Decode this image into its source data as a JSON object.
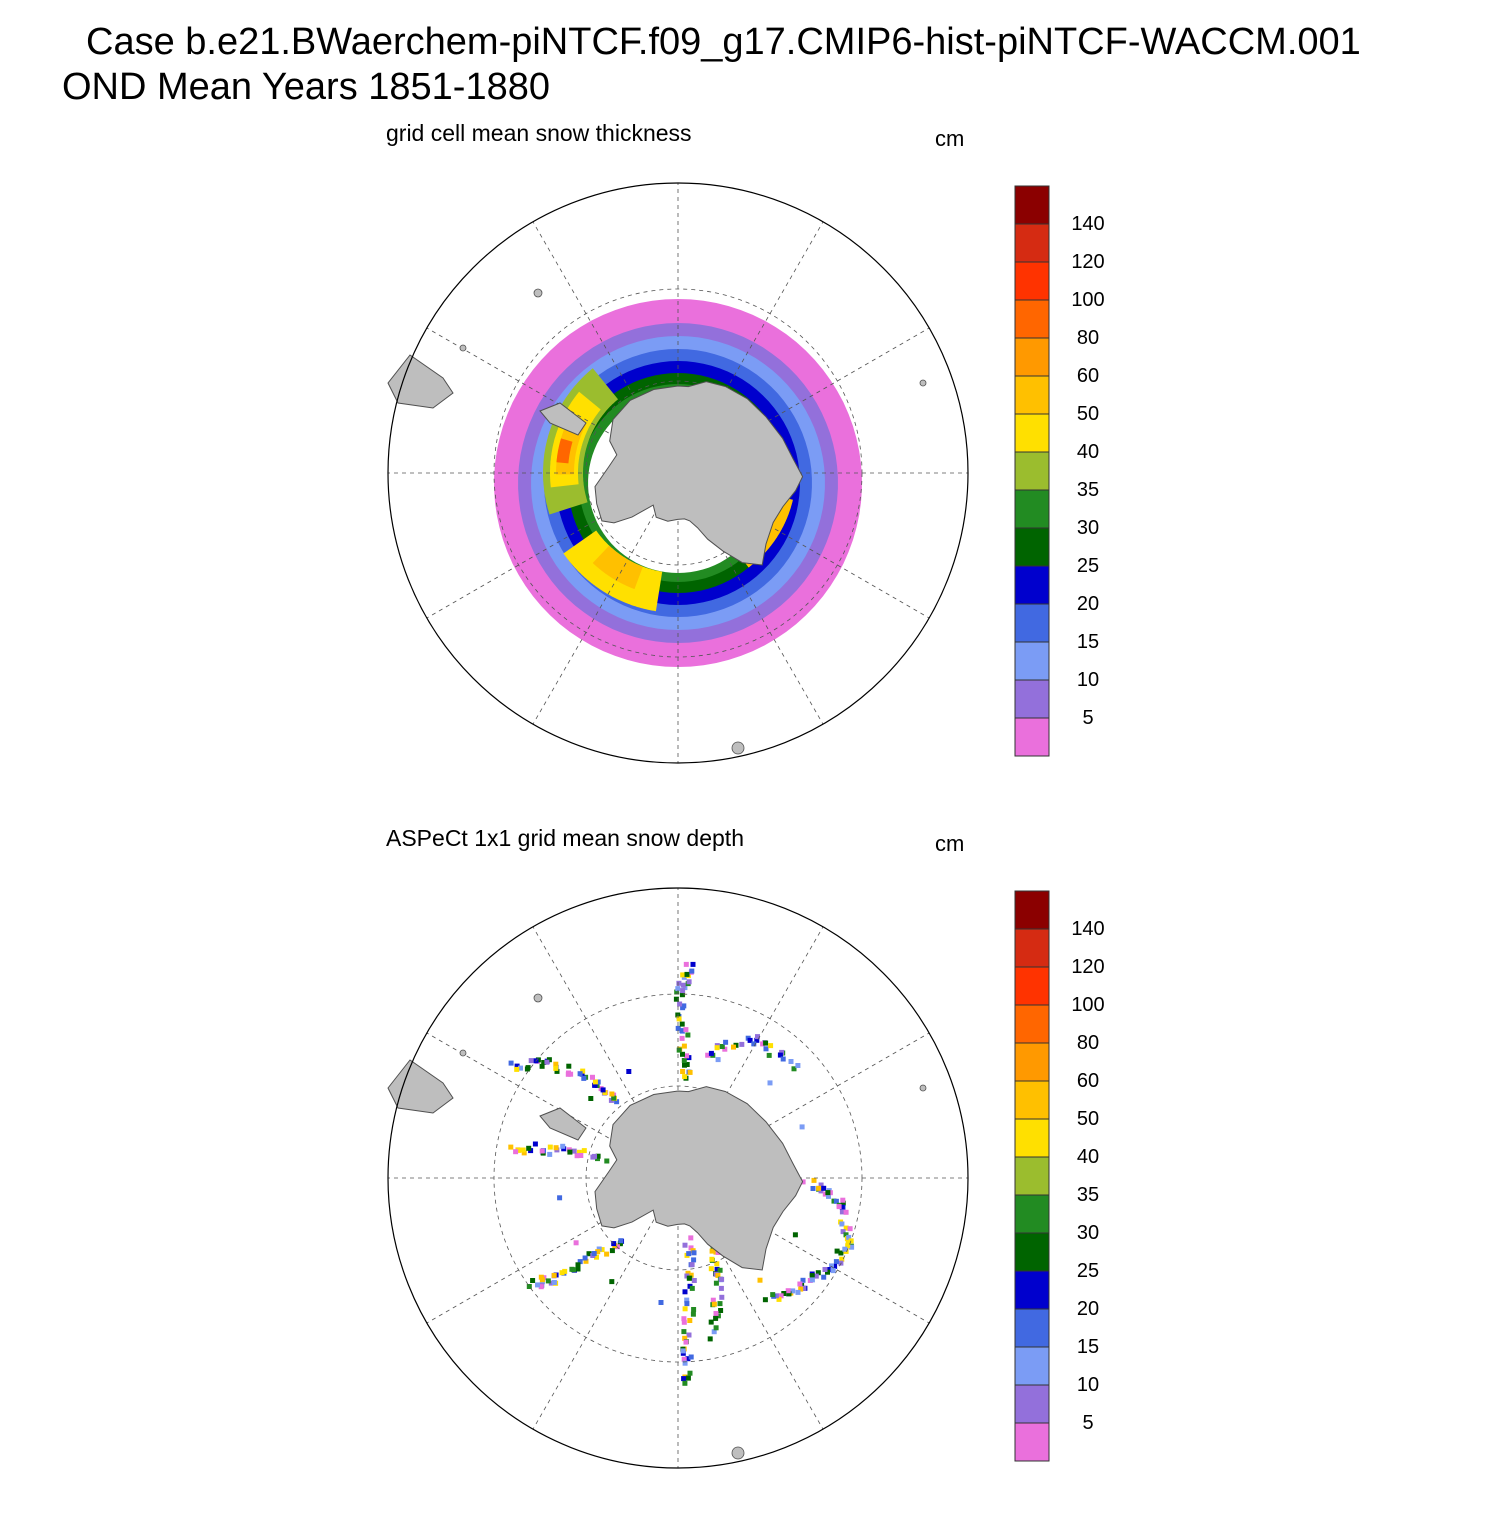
{
  "title": {
    "line1": "Case b.e21.BWaerchem-piNTCF.f09_g17.CMIP6-hist-piNTCF-WACCM.001",
    "line2": "OND Mean   Years 1851-1880"
  },
  "panels": [
    {
      "title": "grid cell mean snow thickness",
      "units": "cm",
      "kind": "model"
    },
    {
      "title": "ASPeCt 1x1 grid mean snow depth",
      "units": "cm",
      "kind": "obs"
    }
  ],
  "colorbar": {
    "labels": [
      "140",
      "120",
      "100",
      "80",
      "60",
      "50",
      "40",
      "35",
      "30",
      "25",
      "20",
      "15",
      "10",
      "5"
    ],
    "colors_top_to_bottom": [
      "#8b0000",
      "#d52b12",
      "#ff3300",
      "#ff6600",
      "#ff9900",
      "#ffc000",
      "#ffe000",
      "#9bbd2e",
      "#228b22",
      "#006400",
      "#0000cd",
      "#4169e1",
      "#7b9cf5",
      "#9370db",
      "#ea70dc"
    ]
  },
  "map_colors": {
    "land": "#bebebe",
    "coast": "#505050",
    "grid": "#555555"
  }
}
